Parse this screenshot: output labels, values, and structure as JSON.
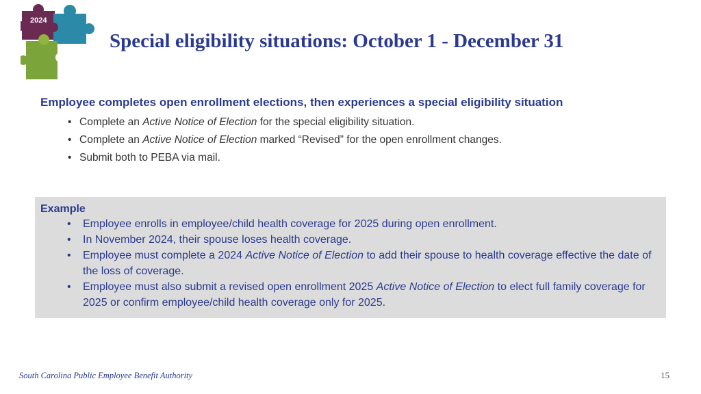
{
  "logo": {
    "year_text": "2024"
  },
  "header": {
    "title": "Special eligibility situations: October 1 - December 31"
  },
  "section": {
    "heading": "Employee completes open enrollment elections, then experiences a special eligibility situation",
    "bullets": [
      {
        "before": "Complete an ",
        "em": "Active Notice of Election",
        "after": " for the special eligibility situation."
      },
      {
        "before": "Complete an ",
        "em": "Active Notice of Election",
        "after": " marked “Revised” for the open enrollment changes."
      },
      {
        "before": "Submit both to PEBA via mail.",
        "em": "",
        "after": ""
      }
    ]
  },
  "example": {
    "heading": "Example",
    "bullets": [
      {
        "before": "Employee enrolls in employee/child health coverage for 2025 during open enrollment.",
        "em": "",
        "after": ""
      },
      {
        "before": "In November 2024, their spouse loses health coverage.",
        "em": "",
        "after": ""
      },
      {
        "before": "Employee must complete a 2024 ",
        "em": "Active Notice of Election",
        "after": " to add their spouse to health coverage effective the date of the loss of coverage."
      },
      {
        "before": "Employee must also submit a revised open enrollment 2025 ",
        "em": "Active Notice of Election",
        "after": " to elect full family coverage for 2025 or confirm employee/child health coverage only for 2025."
      }
    ]
  },
  "footer": {
    "organization": "South Carolina Public Employee Benefit Authority",
    "page_number": "15"
  },
  "colors": {
    "heading_blue": "#2b3a8f",
    "example_bg": "#dcdcdc",
    "puzzle_purple": "#6b2a52",
    "puzzle_teal": "#2a8aa8",
    "puzzle_green": "#7ba43a"
  }
}
